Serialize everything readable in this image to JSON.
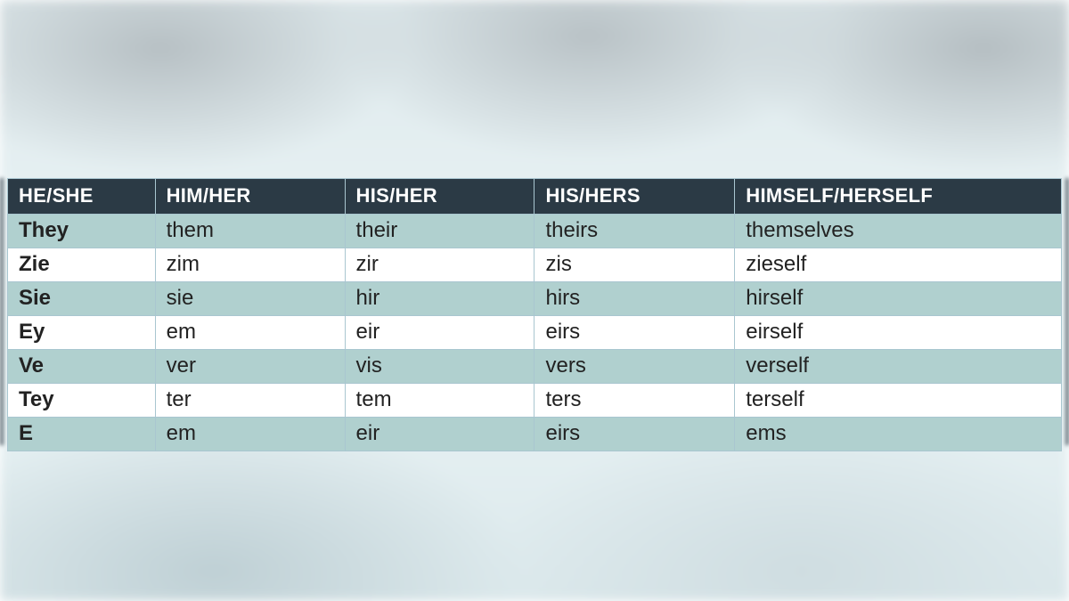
{
  "table": {
    "type": "table",
    "header_bg": "#2b3a45",
    "header_fg": "#ffffff",
    "row_odd_bg": "#b0d0cf",
    "row_even_bg": "#ffffff",
    "border_color": "#a9c6d0",
    "header_fontsize": 22,
    "cell_fontsize": 24,
    "column_widths_pct": [
      14,
      18,
      18,
      19,
      31
    ],
    "columns": [
      "HE/SHE",
      "HIM/HER",
      "HIS/HER",
      "HIS/HERS",
      "HIMSELF/HERSELF"
    ],
    "rows": [
      [
        "They",
        "them",
        "their",
        "theirs",
        "themselves"
      ],
      [
        "Zie",
        "zim",
        "zir",
        "zis",
        "zieself"
      ],
      [
        "Sie",
        "sie",
        "hir",
        "hirs",
        "hirself"
      ],
      [
        "Ey",
        "em",
        "eir",
        "eirs",
        "eirself"
      ],
      [
        "Ve",
        "ver",
        "vis",
        "vers",
        "verself"
      ],
      [
        "Tey",
        "ter",
        "tem",
        "ters",
        "terself"
      ],
      [
        "E",
        "em",
        "eir",
        "eirs",
        "ems"
      ]
    ]
  },
  "background": {
    "page_bg": "#e7f1f3"
  }
}
